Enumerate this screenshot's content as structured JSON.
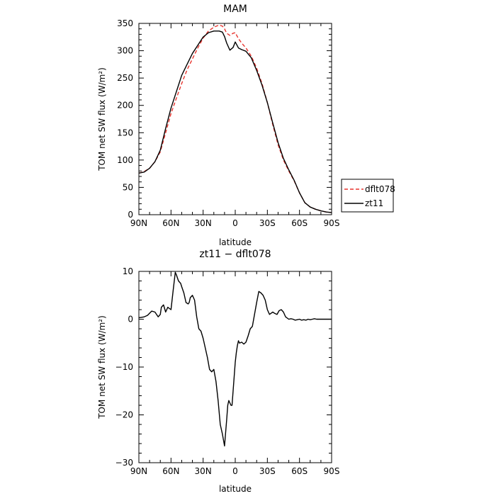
{
  "chart_data": [
    {
      "type": "line",
      "title": "MAM",
      "xlabel": "latitude",
      "ylabel": "TOM net SW flux (W/m²)",
      "xlim": [
        -90,
        90
      ],
      "ylim": [
        0,
        350
      ],
      "xticks": [
        -90,
        -60,
        -30,
        0,
        30,
        60,
        90
      ],
      "xtick_labels": [
        "90N",
        "60N",
        "30N",
        "0",
        "30S",
        "60S",
        "90S"
      ],
      "yticks": [
        0,
        50,
        100,
        150,
        200,
        250,
        300,
        350
      ],
      "ytick_labels": [
        "0",
        "50",
        "100",
        "150",
        "200",
        "250",
        "300",
        "350"
      ],
      "legend_position": "right",
      "series": [
        {
          "name": "dflt078",
          "color": "#e8342e",
          "dash": "dashed",
          "x": [
            -90,
            -85,
            -80,
            -75,
            -70,
            -65,
            -60,
            -55,
            -50,
            -45,
            -40,
            -35,
            -30,
            -25,
            -20,
            -15,
            -12,
            -10,
            -8,
            -5,
            -2,
            0,
            3,
            6,
            10,
            15,
            20,
            25,
            30,
            35,
            40,
            45,
            50,
            55,
            60,
            65,
            70,
            75,
            80,
            85,
            90
          ],
          "y": [
            76,
            79,
            85,
            97,
            115,
            150,
            185,
            213,
            240,
            265,
            285,
            305,
            323,
            336,
            343,
            347,
            345,
            340,
            332,
            328,
            332,
            333,
            322,
            314,
            305,
            290,
            268,
            240,
            205,
            165,
            128,
            100,
            80,
            62,
            40,
            22,
            14,
            10,
            7,
            5,
            4
          ]
        },
        {
          "name": "zt11",
          "color": "#000000",
          "dash": "solid",
          "x": [
            -90,
            -85,
            -80,
            -75,
            -70,
            -65,
            -60,
            -55,
            -50,
            -45,
            -40,
            -35,
            -30,
            -25,
            -20,
            -15,
            -12,
            -10,
            -8,
            -5,
            -2,
            0,
            3,
            6,
            10,
            15,
            20,
            25,
            30,
            35,
            40,
            45,
            50,
            55,
            60,
            65,
            70,
            75,
            80,
            85,
            90
          ],
          "y": [
            76,
            78,
            85,
            97,
            118,
            158,
            195,
            225,
            255,
            275,
            295,
            310,
            325,
            333,
            336,
            336,
            334,
            326,
            314,
            301,
            306,
            316,
            305,
            302,
            299,
            287,
            264,
            237,
            205,
            168,
            132,
            103,
            82,
            63,
            40,
            22,
            14,
            10,
            7,
            5,
            4
          ]
        }
      ]
    },
    {
      "type": "line",
      "title": "zt11 − dflt078",
      "xlabel": "latitude",
      "ylabel": "TOM net SW flux (W/m²)",
      "xlim": [
        -90,
        90
      ],
      "ylim": [
        -30,
        10
      ],
      "xticks": [
        -90,
        -60,
        -30,
        0,
        30,
        60,
        90
      ],
      "xtick_labels": [
        "90N",
        "60N",
        "30N",
        "0",
        "30S",
        "60S",
        "90S"
      ],
      "yticks": [
        -30,
        -20,
        -10,
        0,
        10
      ],
      "ytick_labels": [
        "−30",
        "−20",
        "−10",
        "0",
        "10"
      ],
      "series": [
        {
          "color": "#000000",
          "x": [
            -90,
            -85,
            -82,
            -78,
            -75,
            -72,
            -70,
            -69,
            -67,
            -65,
            -63,
            -60,
            -58,
            -56,
            -55,
            -53,
            -51,
            -50,
            -48,
            -46,
            -44,
            -43,
            -42,
            -40,
            -38,
            -36,
            -34,
            -32,
            -30,
            -28,
            -26,
            -24,
            -22,
            -20,
            -18,
            -16,
            -14,
            -12,
            -10,
            -8,
            -7,
            -6,
            -5,
            -4,
            -3,
            -2,
            -1,
            0,
            1,
            2,
            3,
            4,
            6,
            8,
            10,
            12,
            14,
            16,
            18,
            20,
            22,
            24,
            26,
            28,
            30,
            32,
            35,
            37,
            39,
            41,
            43,
            45,
            47,
            50,
            52,
            54,
            56,
            58,
            60,
            62,
            64,
            66,
            68,
            70,
            72,
            74,
            76,
            78,
            80,
            82,
            84,
            86,
            88,
            90
          ],
          "y": [
            0.3,
            0.5,
            0.8,
            1.7,
            1.5,
            0.5,
            1.0,
            2.5,
            3.0,
            1.5,
            2.5,
            2.0,
            6.0,
            9.8,
            9.3,
            8.0,
            7.5,
            6.8,
            5.5,
            3.5,
            3.2,
            3.5,
            4.5,
            5.0,
            4.0,
            0.5,
            -2.0,
            -2.5,
            -4.0,
            -6.0,
            -8.0,
            -10.5,
            -11.0,
            -10.5,
            -13.0,
            -17.0,
            -22.0,
            -24.0,
            -26.5,
            -21.0,
            -18.0,
            -17.0,
            -17.5,
            -18.0,
            -18.0,
            -15.0,
            -12.0,
            -9.0,
            -7.0,
            -5.5,
            -4.5,
            -5.0,
            -4.8,
            -5.2,
            -4.8,
            -3.5,
            -2.0,
            -1.5,
            1.0,
            3.5,
            5.8,
            5.5,
            5.0,
            4.0,
            2.0,
            1.0,
            1.5,
            1.2,
            1.0,
            1.8,
            2.0,
            1.5,
            0.5,
            0.0,
            0.1,
            0.0,
            -0.2,
            -0.1,
            0.0,
            -0.2,
            -0.1,
            -0.2,
            0.0,
            -0.1,
            0.0,
            0.1,
            0.0,
            0.0,
            0.0,
            0.0,
            0.0,
            0.0,
            0.0,
            0.0
          ]
        }
      ]
    }
  ]
}
